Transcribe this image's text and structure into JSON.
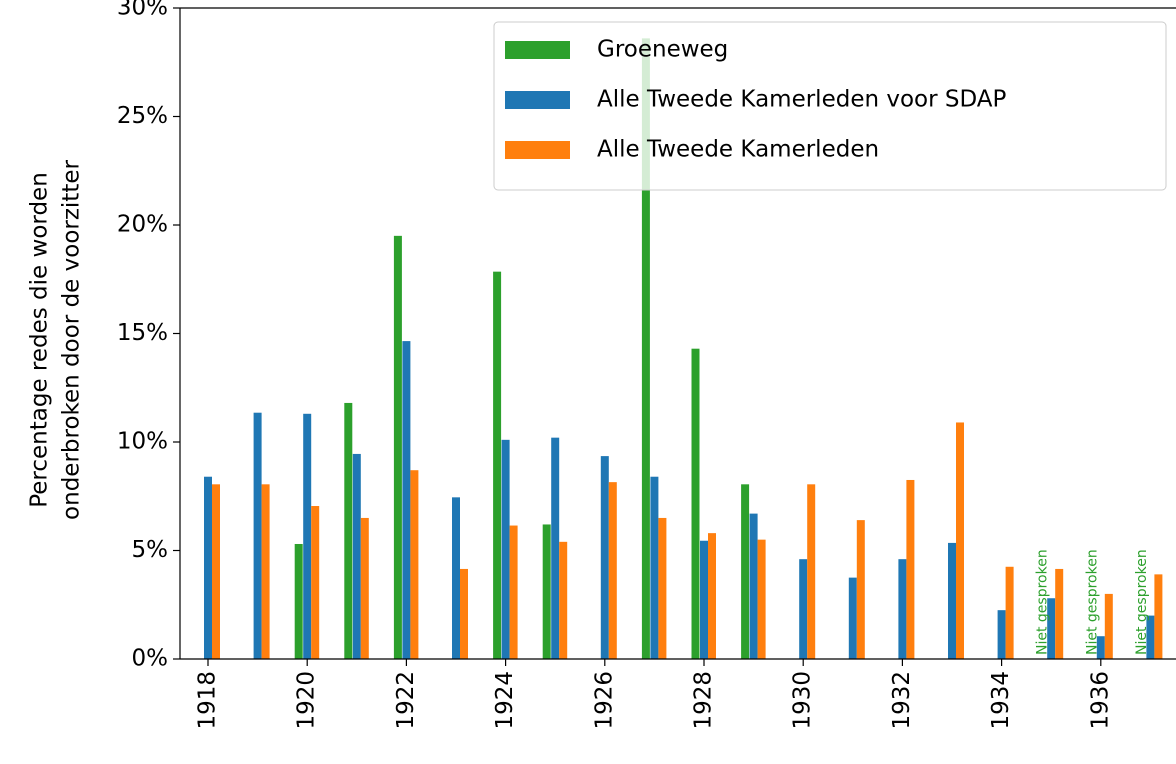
{
  "chart_data": {
    "type": "bar",
    "ylabel": [
      "Percentage redes die worden",
      "onderbroken door de voorzitter"
    ],
    "categories": [
      "1918",
      null,
      "1920",
      null,
      "1922",
      null,
      "1924",
      null,
      "1926",
      null,
      "1928",
      null,
      "1930",
      null,
      "1932",
      null,
      "1934",
      null,
      "1936",
      null
    ],
    "series": [
      {
        "name": "Groeneweg",
        "color": "#2ca02c",
        "values": [
          null,
          null,
          5.3,
          11.8,
          19.5,
          null,
          17.85,
          6.2,
          null,
          28.6,
          14.3,
          8.05,
          null,
          null,
          null,
          null,
          null,
          null,
          null,
          null
        ]
      },
      {
        "name": "Alle Tweede Kamerleden voor SDAP",
        "color": "#1f77b4",
        "values": [
          8.4,
          11.35,
          11.3,
          9.45,
          14.65,
          7.45,
          10.1,
          10.2,
          9.35,
          8.4,
          5.45,
          6.7,
          4.6,
          3.75,
          4.6,
          5.35,
          2.25,
          2.8,
          1.05,
          2.0
        ]
      },
      {
        "name": "Alle Tweede Kamerleden",
        "color": "#ff7f0e",
        "values": [
          8.05,
          8.05,
          7.05,
          6.5,
          8.7,
          4.15,
          6.15,
          5.4,
          8.15,
          6.5,
          5.8,
          5.5,
          8.05,
          6.4,
          8.25,
          10.9,
          4.25,
          4.15,
          3.0,
          3.9
        ]
      }
    ],
    "annotations": [
      {
        "text": "Niet gesproken",
        "category_index": 17,
        "color": "#2ca02c"
      },
      {
        "text": "Niet gesproken",
        "category_index": 18,
        "color": "#2ca02c"
      },
      {
        "text": "Niet gesproken",
        "category_index": 19,
        "color": "#2ca02c"
      }
    ],
    "ylim": [
      0,
      30
    ],
    "yticks": [
      {
        "value": 0,
        "label": "0%"
      },
      {
        "value": 5,
        "label": "5%"
      },
      {
        "value": 10,
        "label": "10%"
      },
      {
        "value": 15,
        "label": "15%"
      },
      {
        "value": 20,
        "label": "20%"
      },
      {
        "value": 25,
        "label": "25%"
      },
      {
        "value": 30,
        "label": "30%"
      }
    ],
    "legend": "upper right",
    "grid": false
  }
}
